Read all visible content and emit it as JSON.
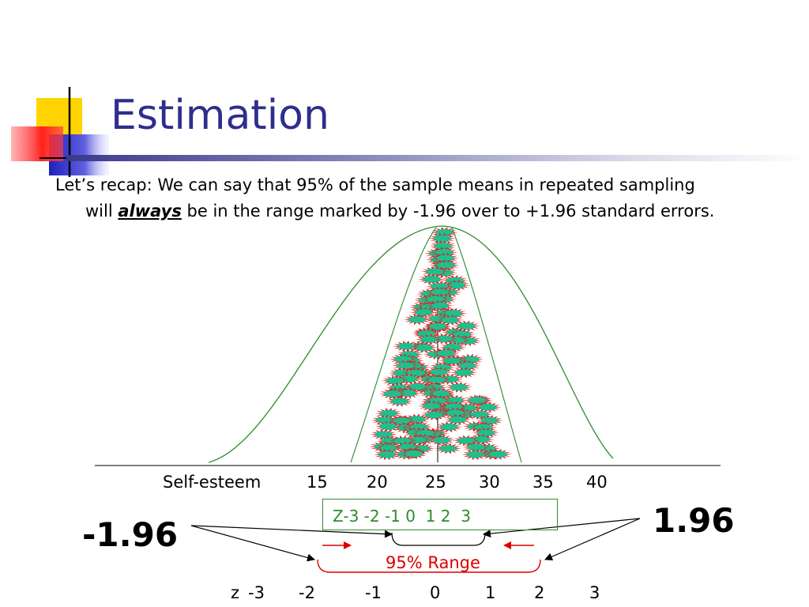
{
  "slide": {
    "title": "Estimation",
    "recap_line1": "Let’s recap:  We can say that 95% of the sample means in repeated sampling",
    "recap_line2_pre": "will ",
    "recap_line2_emph": "always",
    "recap_line2_post": " be in the range marked by -1.96 over to +1.96 standard errors."
  },
  "diagram": {
    "axis_label": "Self-esteem",
    "x_ticks": [
      "15",
      "20",
      "25",
      "30",
      "35",
      "40"
    ],
    "z_box_text": "Z-3 -2 -1 0  1 2  3",
    "left_label": "-1.96",
    "right_label": "1.96",
    "range_label": "95% Range",
    "z_row_prefix": "z",
    "z_ticks": [
      "-3",
      "-2",
      "-1",
      "0",
      "1",
      "2",
      "3"
    ]
  },
  "colors": {
    "title": "#2e2e8c",
    "curve": "#2e8b2e",
    "marker_fill": "#1fbf8f",
    "marker_burst": "#e02020",
    "range": "#dd0000"
  }
}
